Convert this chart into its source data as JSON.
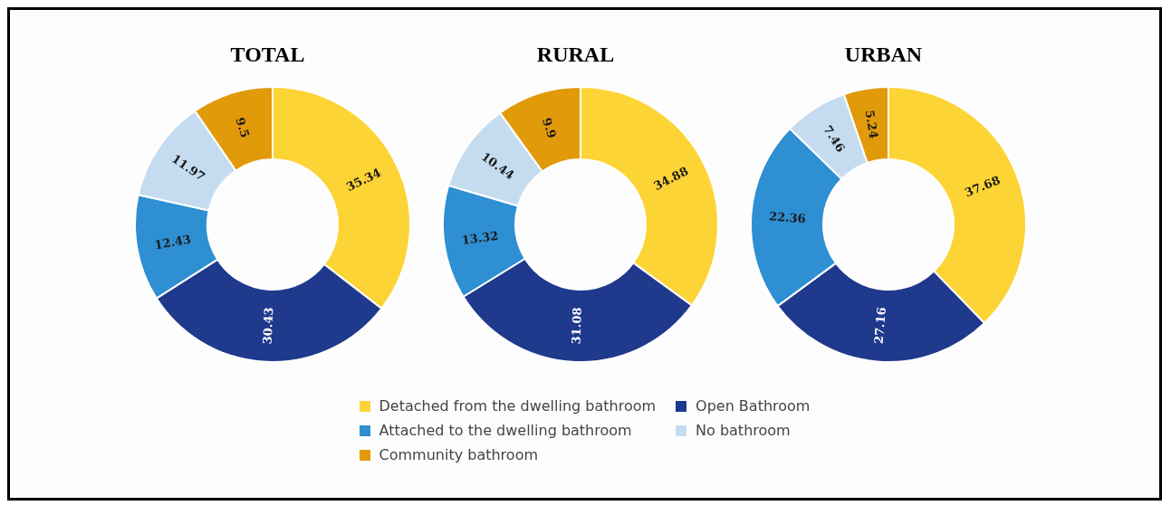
{
  "chart_data": [
    {
      "type": "donut",
      "title": "TOTAL",
      "categories": [
        "Detached from the dwelling bathroom",
        "Open Bathroom",
        "Attached to the dwelling bathroom",
        "No bathroom",
        "Community bathroom"
      ],
      "values": [
        35.34,
        30.43,
        12.43,
        11.97,
        9.5
      ],
      "colors": [
        "#fdd436",
        "#1f3a8c",
        "#2e8fd2",
        "#c5dcf0",
        "#e09a0a"
      ],
      "data_labels": true,
      "legend": "bottom"
    },
    {
      "type": "donut",
      "title": "RURAL",
      "categories": [
        null,
        null,
        null,
        null,
        null
      ],
      "values": [
        34.88,
        31.08,
        13.32,
        10.44,
        9.9
      ],
      "colors": [
        "#fdd436",
        "#1f3a8c",
        "#2e8fd2",
        "#c5dcf0",
        "#e09a0a"
      ],
      "data_labels": true
    },
    {
      "type": "donut",
      "title": "URBAN",
      "categories": [
        null,
        null,
        null,
        null,
        null
      ],
      "values": [
        37.68,
        27.16,
        22.36,
        7.46,
        5.24
      ],
      "colors": [
        "#fdd436",
        "#1f3a8c",
        "#2e8fd2",
        "#c5dcf0",
        "#e09a0a"
      ],
      "data_labels": true
    }
  ]
}
